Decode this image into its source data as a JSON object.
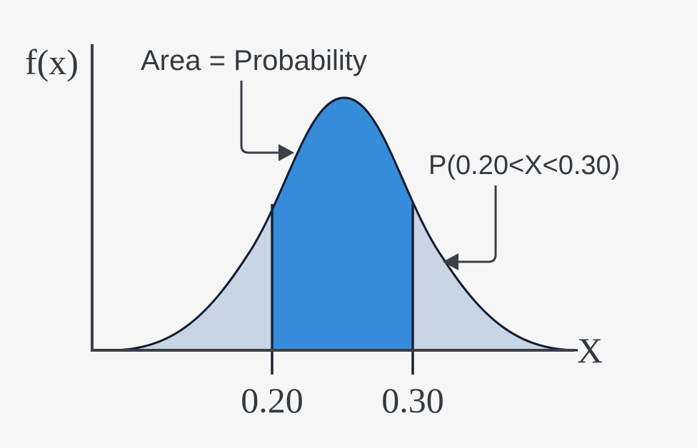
{
  "diagram": {
    "y_axis_label": "f(x)",
    "x_axis_label": "X",
    "area_annotation": "Area = Probability",
    "probability_annotation": "P(0.20<X<0.30)",
    "lower_bound_label": "0.20",
    "upper_bound_label": "0.30",
    "lower_bound": 0.2,
    "upper_bound": 0.3
  },
  "colors": {
    "background": "#f6f6f6",
    "curve_stroke": "#0e1b33",
    "axis_stroke": "#3a3f46",
    "tail_fill": "#c8d5e3",
    "probability_fill": "#378cd9",
    "arrow": "#3a3f46",
    "text": "#333940"
  }
}
